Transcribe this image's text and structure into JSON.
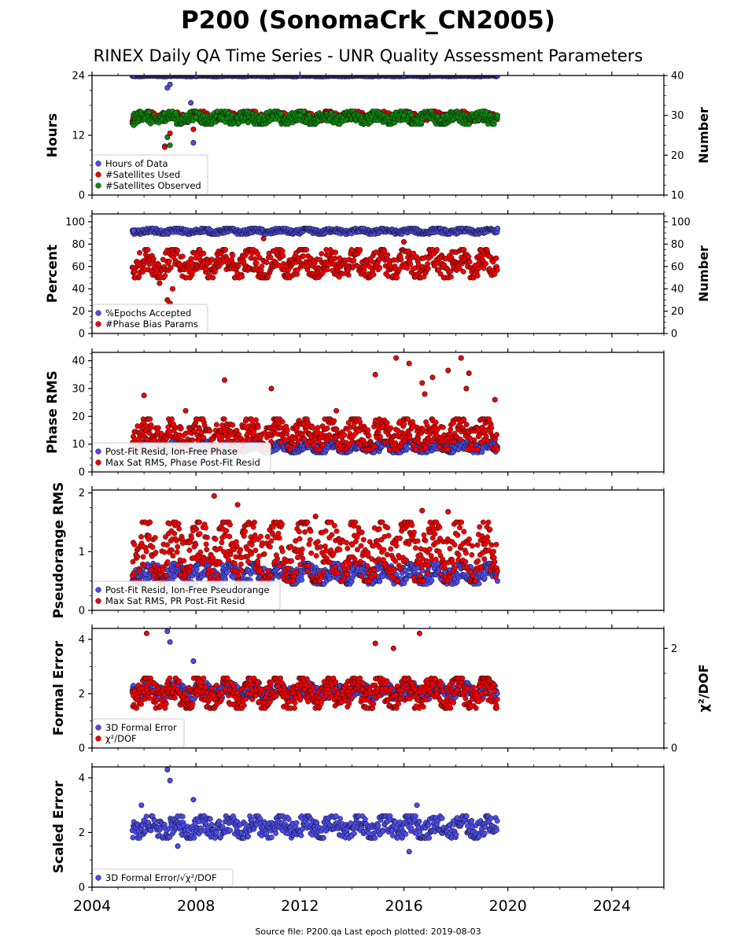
{
  "title": "P200 (SonomaCrk_CN2005)",
  "subtitle": "RINEX Daily QA Time Series - UNR Quality Assessment Parameters",
  "footer": "Source file: P200.qa Last epoch plotted: 2019-08-03",
  "colors": {
    "blue": "#4b4bef",
    "red": "#f20000",
    "green": "#0b8a0b",
    "navy": "#1c1c5a"
  },
  "chart_data": [
    {
      "type": "scatter",
      "ylabel": "Hours",
      "ylabel_right": "Number",
      "ylim": [
        0,
        24
      ],
      "yticks": [
        "0",
        "12",
        "24"
      ],
      "ylim_right": [
        10,
        40
      ],
      "yticks_right": [
        "10",
        "20",
        "30",
        "40"
      ],
      "xlim": [
        2004,
        2026
      ],
      "legend": "lower-left",
      "series": [
        {
          "name": "Hours of Data",
          "color": "#4b4bef",
          "axis": "left",
          "band": [
            23.8,
            24
          ],
          "values": [
            [
              2005.6,
              24
            ],
            [
              2008,
              24
            ],
            [
              2012,
              24
            ],
            [
              2016,
              24
            ],
            [
              2019.6,
              24
            ],
            [
              2006.9,
              21.5
            ],
            [
              2007.0,
              22.2
            ],
            [
              2007.8,
              18.5
            ],
            [
              2007.9,
              10.5
            ],
            [
              2006.8,
              9.8
            ]
          ]
        },
        {
          "name": "#Satellites Used",
          "color": "#f20000",
          "axis": "right",
          "band": [
            28.5,
            31
          ],
          "values": [
            [
              2007.0,
              25.5
            ],
            [
              2007.9,
              26.5
            ],
            [
              2006.8,
              22.0
            ]
          ]
        },
        {
          "name": "#Satellites Observed",
          "color": "#0b8a0b",
          "axis": "right",
          "band": [
            27.8,
            31
          ],
          "values": [
            [
              2005.6,
              27.5
            ],
            [
              2008,
              29.5
            ],
            [
              2010,
              28.2
            ],
            [
              2012,
              30.0
            ],
            [
              2016,
              30.0
            ],
            [
              2019.6,
              30.0
            ],
            [
              2006.9,
              24.5
            ],
            [
              2007.0,
              22.5
            ]
          ]
        }
      ]
    },
    {
      "type": "scatter",
      "ylabel": "Percent",
      "ylabel_right": "Number",
      "ylim": [
        0,
        107
      ],
      "yticks": [
        "0",
        "20",
        "40",
        "60",
        "80",
        "100"
      ],
      "ylim_right": [
        0,
        107
      ],
      "yticks_right": [
        "0",
        "20",
        "40",
        "60",
        "80",
        "100"
      ],
      "xlim": [
        2004,
        2026
      ],
      "legend": "lower-left",
      "series": [
        {
          "name": "%Epochs Accepted",
          "color": "#4b4bef",
          "axis": "left",
          "band": [
            89,
            94
          ],
          "values": [
            [
              2005.6,
              92
            ],
            [
              2019.6,
              94
            ]
          ]
        },
        {
          "name": "#Phase Bias Params",
          "color": "#f20000",
          "axis": "right",
          "band": [
            50,
            75
          ],
          "values": [
            [
              2006.9,
              30
            ],
            [
              2007.0,
              27
            ],
            [
              2007.1,
              40
            ],
            [
              2006.6,
              45
            ],
            [
              2010.6,
              85
            ],
            [
              2016,
              82
            ]
          ]
        }
      ]
    },
    {
      "type": "scatter",
      "ylabel": "Phase RMS",
      "ylim": [
        0,
        43
      ],
      "yticks": [
        "0",
        "10",
        "20",
        "30",
        "40"
      ],
      "xlim": [
        2004,
        2026
      ],
      "legend": "lower-left",
      "series": [
        {
          "name": "Post-Fit Resid, Ion-Free Phase",
          "color": "#4b4bef",
          "band": [
            7,
            11
          ],
          "values": [
            [
              2005.6,
              9
            ],
            [
              2019.6,
              9
            ]
          ]
        },
        {
          "name": "Max Sat RMS, Phase Post-Fit Resid",
          "color": "#f20000",
          "band": [
            8,
            19
          ],
          "values": [
            [
              2006,
              27.5
            ],
            [
              2007.6,
              22
            ],
            [
              2009.1,
              33
            ],
            [
              2010.9,
              30
            ],
            [
              2013.4,
              22
            ],
            [
              2014.9,
              35
            ],
            [
              2015.7,
              41
            ],
            [
              2016.2,
              39
            ],
            [
              2016.7,
              32
            ],
            [
              2016.8,
              28
            ],
            [
              2017.1,
              34
            ],
            [
              2017.7,
              36.5
            ],
            [
              2018.2,
              41
            ],
            [
              2018.5,
              35.5
            ],
            [
              2018.4,
              30
            ],
            [
              2019.5,
              26
            ]
          ]
        }
      ]
    },
    {
      "type": "scatter",
      "ylabel": "Pseudorange RMS",
      "ylim": [
        0,
        2.05
      ],
      "yticks": [
        "0",
        "1",
        "2"
      ],
      "xlim": [
        2004,
        2026
      ],
      "legend": "lower-left",
      "series": [
        {
          "name": "Post-Fit Resid, Ion-Free Pseudorange",
          "color": "#4b4bef",
          "band": [
            0.45,
            0.8
          ],
          "values": [
            [
              2005.6,
              0.6
            ],
            [
              2019.6,
              0.5
            ]
          ]
        },
        {
          "name": "Max Sat RMS, PR Post-Fit Resid",
          "color": "#f20000",
          "band": [
            0.5,
            1.5
          ],
          "values": [
            [
              2008.7,
              1.95
            ],
            [
              2009.6,
              1.8
            ],
            [
              2016.7,
              1.7
            ],
            [
              2017.7,
              1.68
            ],
            [
              2012.6,
              1.6
            ]
          ]
        }
      ]
    },
    {
      "type": "scatter",
      "ylabel": "Formal Error",
      "ylabel_right": "χ²/DOF",
      "ylim": [
        0,
        4.4
      ],
      "yticks": [
        "0",
        "2",
        "4"
      ],
      "ylim_right": [
        0,
        2.4
      ],
      "yticks_right": [
        "0",
        "2"
      ],
      "xlim": [
        2004,
        2026
      ],
      "legend": "lower-left",
      "series": [
        {
          "name": "3D Formal Error",
          "color": "#4b4bef",
          "axis": "left",
          "band": [
            1.8,
            2.4
          ],
          "values": [
            [
              2006.9,
              4.3
            ],
            [
              2007.0,
              3.9
            ],
            [
              2007.9,
              3.2
            ]
          ]
        },
        {
          "name": "χ²/DOF",
          "color": "#f20000",
          "axis": "right",
          "band": [
            0.8,
            1.4
          ],
          "values": [
            [
              2006.1,
              2.3
            ],
            [
              2014.9,
              2.1
            ],
            [
              2016.6,
              2.3
            ],
            [
              2015.6,
              2.0
            ]
          ]
        }
      ]
    },
    {
      "type": "scatter",
      "ylabel": "Scaled Error",
      "ylim": [
        0,
        4.4
      ],
      "yticks": [
        "0",
        "2",
        "4"
      ],
      "xlim": [
        2004,
        2026
      ],
      "xticks": [
        "2004",
        "2008",
        "2012",
        "2016",
        "2020",
        "2024"
      ],
      "legend": "lower-left",
      "series": [
        {
          "name": "3D Formal Error/√χ²/DOF",
          "color": "#4b4bef",
          "band": [
            1.8,
            2.6
          ],
          "values": [
            [
              2006.9,
              4.3
            ],
            [
              2007.0,
              3.9
            ],
            [
              2007.9,
              3.2
            ],
            [
              2007.3,
              1.5
            ],
            [
              2016.2,
              1.3
            ],
            [
              2005.9,
              3.0
            ],
            [
              2016.5,
              3.0
            ]
          ]
        }
      ]
    }
  ]
}
